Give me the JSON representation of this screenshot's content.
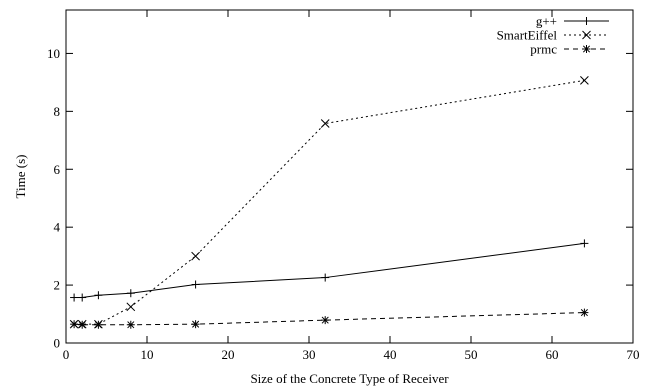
{
  "chart_data": {
    "type": "line",
    "title": "",
    "xlabel": "Size of the Concrete Type of Receiver",
    "ylabel": "Time (s)",
    "xlim": [
      0,
      70
    ],
    "ylim": [
      0,
      11.5
    ],
    "xticks": [
      0,
      10,
      20,
      30,
      40,
      50,
      60,
      70
    ],
    "yticks": [
      0,
      2,
      4,
      6,
      8,
      10
    ],
    "xtick_labels": [
      "0",
      "10",
      "20",
      "30",
      "40",
      "50",
      "60",
      "70"
    ],
    "ytick_labels": [
      "0",
      "2",
      "4",
      "6",
      "8",
      "10"
    ],
    "grid": false,
    "legend_position": "top-right",
    "series": [
      {
        "name": "g++",
        "line_style": "solid",
        "marker": "plus",
        "x": [
          1,
          2,
          4,
          8,
          16,
          32,
          64
        ],
        "y": [
          1.57,
          1.57,
          1.65,
          1.72,
          2.02,
          2.26,
          3.44
        ]
      },
      {
        "name": "SmartEiffel",
        "line_style": "dotted",
        "marker": "cross",
        "x": [
          1,
          2,
          4,
          8,
          16,
          32,
          64
        ],
        "y": [
          0.65,
          0.65,
          0.65,
          1.25,
          3.0,
          7.58,
          9.07
        ]
      },
      {
        "name": "prmc",
        "line_style": "dashed",
        "marker": "star",
        "x": [
          1,
          2,
          4,
          8,
          16,
          32,
          64
        ],
        "y": [
          0.65,
          0.63,
          0.63,
          0.63,
          0.65,
          0.79,
          1.05
        ]
      }
    ]
  }
}
